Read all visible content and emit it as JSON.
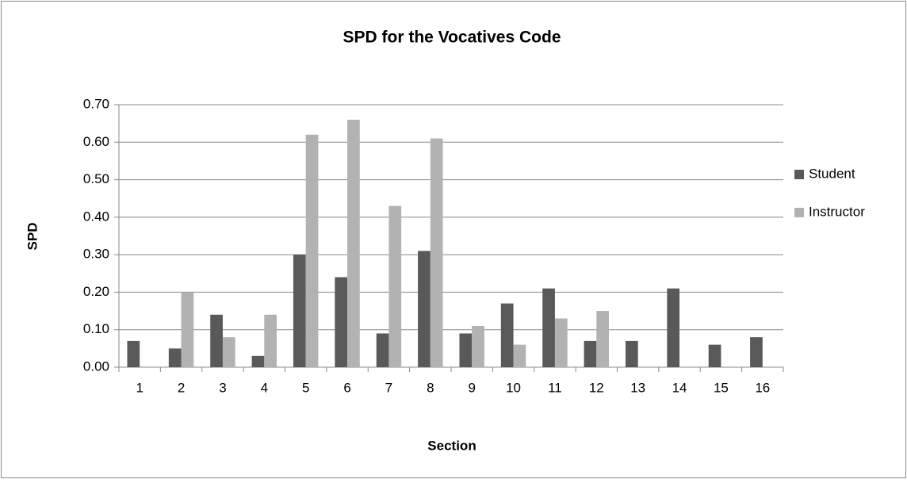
{
  "chart_data": {
    "type": "bar",
    "title": "SPD for the Vocatives Code",
    "x_label": "Section",
    "y_label": "SPD",
    "categories": [
      "1",
      "2",
      "3",
      "4",
      "5",
      "6",
      "7",
      "8",
      "9",
      "10",
      "11",
      "12",
      "13",
      "14",
      "15",
      "16"
    ],
    "series": [
      {
        "name": "Student",
        "color": "#595959",
        "values": [
          0.07,
          0.05,
          0.14,
          0.03,
          0.3,
          0.24,
          0.09,
          0.31,
          0.09,
          0.17,
          0.21,
          0.07,
          0.07,
          0.21,
          0.06,
          0.08
        ]
      },
      {
        "name": "Instructor",
        "color": "#b2b2b2",
        "values": [
          0,
          0.2,
          0.08,
          0.14,
          0.62,
          0.66,
          0.43,
          0.61,
          0.11,
          0.06,
          0.13,
          0.15,
          0,
          0,
          0,
          0
        ]
      }
    ],
    "ylim": [
      0,
      0.7
    ],
    "yticks": [
      {
        "value": 0,
        "label": "0.00"
      },
      {
        "value": 0.1,
        "label": "0.10"
      },
      {
        "value": 0.2,
        "label": "0.20"
      },
      {
        "value": 0.3,
        "label": "0.30"
      },
      {
        "value": 0.4,
        "label": "0.40"
      },
      {
        "value": 0.5,
        "label": "0.50"
      },
      {
        "value": 0.6,
        "label": "0.60"
      },
      {
        "value": 0.7,
        "label": "0.70"
      }
    ],
    "grid": true,
    "legend": "right"
  }
}
